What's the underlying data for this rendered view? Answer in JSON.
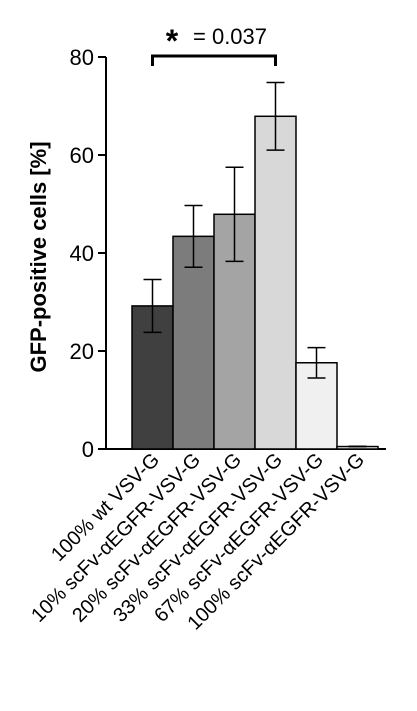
{
  "chart_data": {
    "type": "bar",
    "ylabel": "GFP-positive cells [%]",
    "ylim": [
      0,
      80
    ],
    "yticks": [
      "0",
      "20",
      "40",
      "60",
      "80"
    ],
    "categories": [
      "100% wt VSV-G",
      "10% scFv-αEGFR-VSV-G",
      "20% scFv-αEGFR-VSV-G",
      "33% scFv-αEGFR-VSV-G",
      "67% scFv-αEGFR-VSV-G",
      "100% scFv-αEGFR-VSV-G"
    ],
    "values": [
      29.2,
      43.4,
      47.9,
      67.9,
      17.6,
      0.5
    ],
    "errors": [
      5.4,
      6.3,
      9.6,
      6.9,
      3.1,
      0.2
    ],
    "colors": [
      "#404040",
      "#7c7c7c",
      "#a4a4a4",
      "#d8d8d8",
      "#f0f0f0",
      "#ffffff"
    ],
    "significance": {
      "between": [
        0,
        3
      ],
      "star": "*",
      "label": "= 0.037"
    },
    "grid": false
  }
}
